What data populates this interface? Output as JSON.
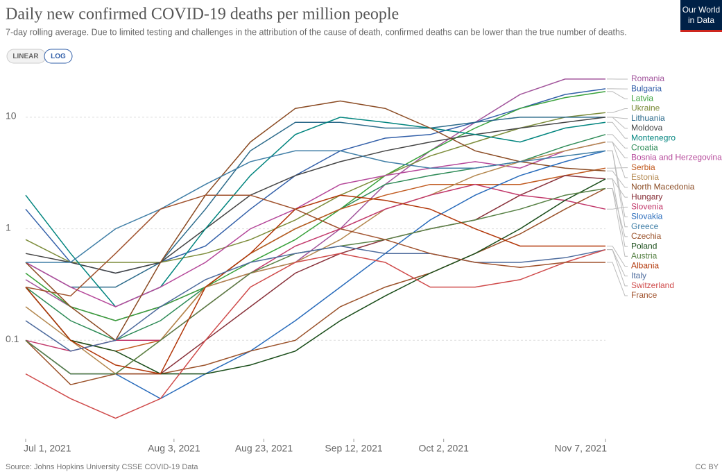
{
  "chart_data": {
    "type": "line",
    "title": "Daily new confirmed COVID-19 deaths per million people",
    "subtitle": "7-day rolling average. Due to limited testing and challenges in the attribution of the cause of death, confirmed deaths can be lower than the true number of deaths.",
    "scale_buttons": [
      "LINEAR",
      "LOG"
    ],
    "log_scale": true,
    "grid": true,
    "source": "Source: Johns Hopkins University CSSE COVID-19 Data",
    "license": "CC BY",
    "logo": [
      "Our World",
      "in Data"
    ],
    "xlim": [
      "2021-07-01",
      "2021-11-07"
    ],
    "xticks": [
      {
        "value": "2021-07-01",
        "label": "Jul 1, 2021"
      },
      {
        "value": "2021-08-03",
        "label": "Aug 3, 2021"
      },
      {
        "value": "2021-08-23",
        "label": "Aug 23, 2021"
      },
      {
        "value": "2021-09-12",
        "label": "Sep 12, 2021"
      },
      {
        "value": "2021-10-02",
        "label": "Oct 2, 2021"
      },
      {
        "value": "2021-11-07",
        "label": "Nov 7, 2021"
      }
    ],
    "ylim": [
      0.0135,
      25
    ],
    "yticks": [
      0.1,
      1,
      10
    ],
    "x": [
      "2021-07-01",
      "2021-07-11",
      "2021-07-21",
      "2021-07-31",
      "2021-08-10",
      "2021-08-20",
      "2021-08-30",
      "2021-09-09",
      "2021-09-19",
      "2021-09-29",
      "2021-10-09",
      "2021-10-19",
      "2021-10-29",
      "2021-11-07"
    ],
    "series": [
      {
        "name": "Romania",
        "color": "#a2559c",
        "values": [
          0.35,
          0.2,
          0.15,
          0.2,
          0.3,
          0.4,
          0.5,
          1,
          2.5,
          5,
          9,
          16,
          22,
          22
        ]
      },
      {
        "name": "Bulgaria",
        "color": "#3360a9",
        "values": [
          1.5,
          0.5,
          0.4,
          0.5,
          0.7,
          1.5,
          3,
          5,
          6.5,
          7,
          9,
          12,
          16,
          18
        ]
      },
      {
        "name": "Latvia",
        "color": "#38a13a",
        "values": [
          0.4,
          0.2,
          0.15,
          0.2,
          0.3,
          0.5,
          0.8,
          1.5,
          3,
          5,
          8,
          12,
          15,
          17
        ]
      },
      {
        "name": "Ukraine",
        "color": "#7c8c3a",
        "values": [
          0.8,
          0.5,
          0.5,
          0.5,
          0.6,
          0.8,
          1.2,
          2,
          3,
          4.5,
          6,
          8,
          10,
          11
        ]
      },
      {
        "name": "Lithuania",
        "color": "#2b6a8a",
        "values": [
          0.5,
          0.3,
          0.3,
          0.5,
          1.5,
          5,
          9,
          9,
          8,
          8,
          9,
          10,
          10,
          10
        ]
      },
      {
        "name": "Moldova",
        "color": "#444444",
        "values": [
          0.6,
          0.5,
          0.4,
          0.5,
          1,
          2,
          3,
          4,
          5,
          6,
          7,
          8,
          9,
          10
        ]
      },
      {
        "name": "Montenegro",
        "color": "#00847e",
        "values": [
          2,
          0.6,
          0.2,
          0.3,
          1,
          3,
          7,
          10,
          9,
          8,
          7,
          6,
          8,
          9
        ]
      },
      {
        "name": "Croatia",
        "color": "#2e8b57",
        "values": [
          0.3,
          0.15,
          0.1,
          0.15,
          0.3,
          0.6,
          1,
          1.5,
          2.5,
          3,
          3.5,
          4,
          5.5,
          7
        ]
      },
      {
        "name": "Bosnia and Herzegovina",
        "color": "#b5489a",
        "values": [
          0.5,
          0.3,
          0.2,
          0.3,
          0.5,
          1,
          1.5,
          2.5,
          3,
          3.5,
          4,
          3.5,
          5,
          6
        ]
      },
      {
        "name": "Serbia",
        "color": "#c15a1f",
        "values": [
          0.3,
          0.1,
          0.08,
          0.1,
          0.3,
          0.6,
          1,
          1.5,
          2,
          2.5,
          2.5,
          2.5,
          3,
          3.5
        ]
      },
      {
        "name": "Estonia",
        "color": "#b3874e",
        "values": [
          0.2,
          0.1,
          0.05,
          0.1,
          0.3,
          0.4,
          0.5,
          0.8,
          1.5,
          2,
          3,
          4,
          5,
          6
        ]
      },
      {
        "name": "North Macedonia",
        "color": "#8a4a22",
        "values": [
          0.5,
          0.2,
          0.1,
          0.5,
          2,
          6,
          12,
          14,
          12,
          8,
          5,
          4,
          3.5,
          3.3
        ]
      },
      {
        "name": "Hungary",
        "color": "#883039",
        "values": [
          0.1,
          0.05,
          0.05,
          0.05,
          0.1,
          0.2,
          0.4,
          0.6,
          0.8,
          1,
          1.2,
          2,
          3,
          2.8
        ]
      },
      {
        "name": "Slovenia",
        "color": "#c2396b",
        "values": [
          0.1,
          0.08,
          0.1,
          0.1,
          0.2,
          0.4,
          0.7,
          1,
          1.5,
          2,
          2.5,
          2,
          1.8,
          1.5
        ]
      },
      {
        "name": "Slovakia",
        "color": "#286bbb",
        "values": [
          0.1,
          0.05,
          0.05,
          0.03,
          0.05,
          0.08,
          0.15,
          0.3,
          0.6,
          1.2,
          2,
          3,
          4,
          5
        ]
      },
      {
        "name": "Greece",
        "color": "#3f7ea6",
        "values": [
          0.5,
          0.5,
          1,
          1.5,
          2.5,
          4,
          5,
          5,
          4,
          3.5,
          3.5,
          4,
          4.5,
          5
        ]
      },
      {
        "name": "Czechia",
        "color": "#9a5129",
        "values": [
          0.1,
          0.04,
          0.05,
          0.05,
          0.06,
          0.08,
          0.1,
          0.2,
          0.3,
          0.4,
          0.6,
          0.9,
          1.5,
          2.3
        ]
      },
      {
        "name": "Poland",
        "color": "#1a4d1a",
        "values": [
          0.3,
          0.1,
          0.08,
          0.05,
          0.05,
          0.06,
          0.08,
          0.15,
          0.25,
          0.4,
          0.6,
          1,
          1.8,
          2.8
        ]
      },
      {
        "name": "Austria",
        "color": "#578145",
        "values": [
          0.1,
          0.05,
          0.05,
          0.1,
          0.2,
          0.4,
          0.6,
          0.7,
          0.8,
          1,
          1.2,
          1.5,
          2,
          2.3
        ]
      },
      {
        "name": "Albania",
        "color": "#b13507",
        "values": [
          0.3,
          0.1,
          0.06,
          0.05,
          0.3,
          0.6,
          1.5,
          2,
          1.8,
          1.5,
          1,
          0.7,
          0.7,
          0.7
        ]
      },
      {
        "name": "Italy",
        "color": "#4c6a9c",
        "values": [
          0.15,
          0.08,
          0.1,
          0.2,
          0.35,
          0.5,
          0.6,
          0.7,
          0.6,
          0.6,
          0.5,
          0.5,
          0.55,
          0.65
        ]
      },
      {
        "name": "Switzerland",
        "color": "#cf4a4a",
        "values": [
          0.05,
          0.03,
          0.02,
          0.03,
          0.1,
          0.3,
          0.5,
          0.6,
          0.5,
          0.3,
          0.3,
          0.35,
          0.5,
          0.65
        ]
      },
      {
        "name": "France",
        "color": "#a0522d",
        "values": [
          0.3,
          0.25,
          0.6,
          1.5,
          2,
          2,
          1.5,
          1,
          0.8,
          0.6,
          0.5,
          0.45,
          0.5,
          0.5
        ]
      }
    ]
  }
}
